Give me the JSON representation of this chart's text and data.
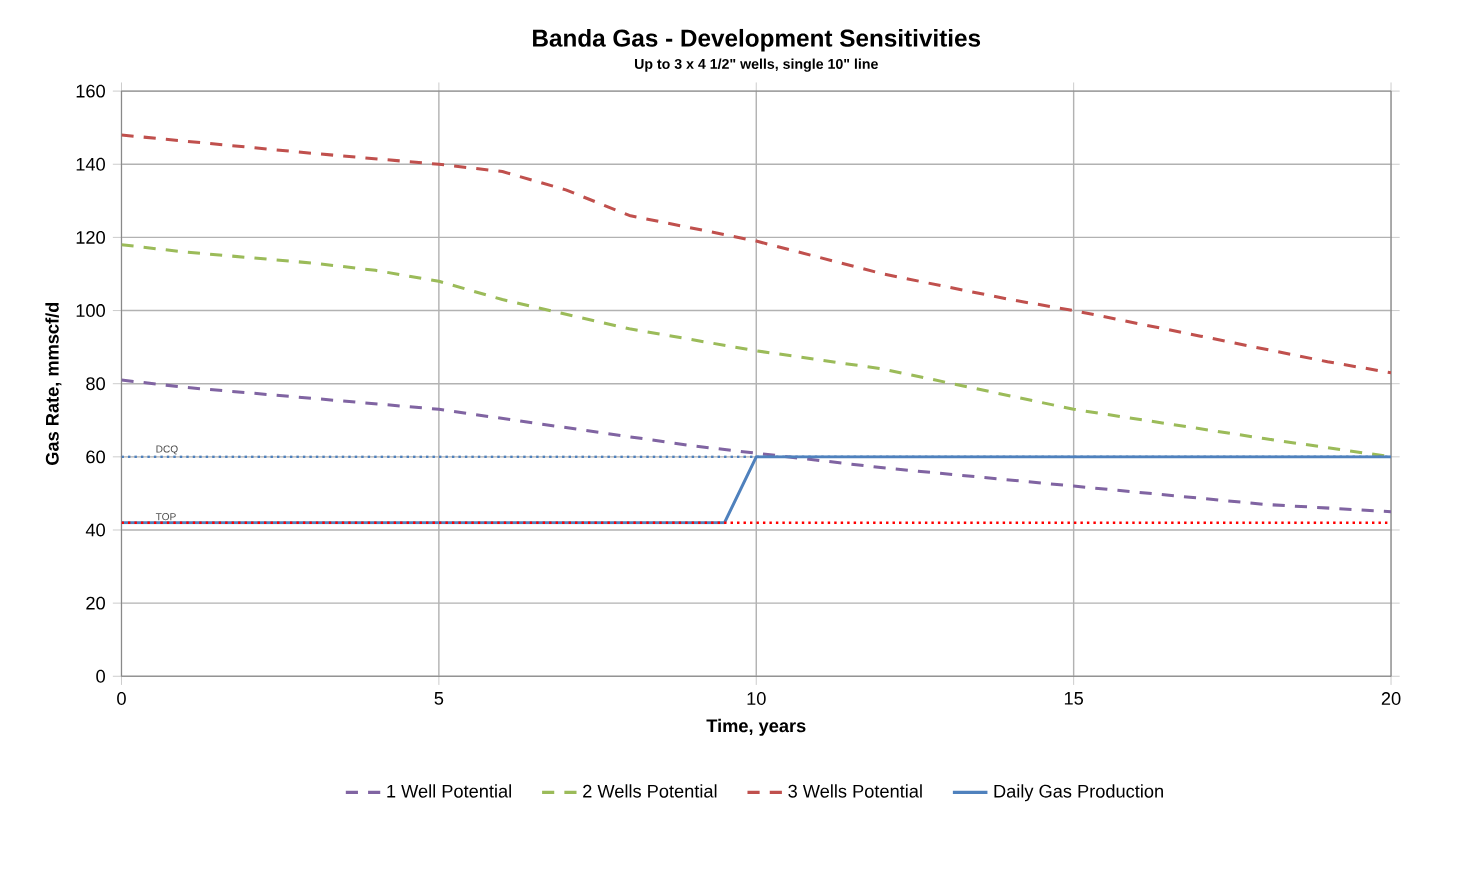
{
  "chart_data": {
    "type": "line",
    "title": "Banda Gas - Development Sensitivities",
    "subtitle": "Up to 3 x 4 1/2\" wells, single 10\" line",
    "xlabel": "Time, years",
    "ylabel": "Gas Rate, mmscf/d",
    "xlim": [
      0,
      20
    ],
    "xticks": [
      0,
      5,
      10,
      15,
      20
    ],
    "ylim": [
      0,
      160
    ],
    "yticks": [
      0,
      20,
      40,
      60,
      80,
      100,
      120,
      140,
      160
    ],
    "grid": true,
    "legend": "bottom",
    "marker": "none",
    "series": [
      {
        "name": "1 Well Potential",
        "color": "#8064a2",
        "line_style": "dashed",
        "x": [
          0,
          1,
          3,
          5,
          7,
          9,
          10,
          12,
          15,
          18,
          20
        ],
        "values": [
          81,
          79,
          76,
          73,
          68,
          63,
          61,
          57,
          52,
          47,
          45
        ]
      },
      {
        "name": "2 Wells Potential",
        "color": "#9bbb59",
        "line_style": "dashed",
        "x": [
          0,
          1,
          3,
          4,
          5,
          6,
          8,
          10,
          12,
          15,
          18,
          20
        ],
        "values": [
          118,
          116,
          113,
          111,
          108,
          103,
          95,
          89,
          84,
          73,
          65,
          60
        ]
      },
      {
        "name": "3 Wells Potential",
        "color": "#c0504d",
        "line_style": "dashed",
        "x": [
          0,
          3,
          5,
          6,
          7,
          8,
          10,
          12,
          14,
          15,
          17,
          19,
          20
        ],
        "values": [
          148,
          143,
          140,
          138,
          133,
          126,
          119,
          110,
          103,
          100,
          93,
          86,
          83
        ]
      },
      {
        "name": "Daily Gas Production",
        "color": "#4f81bd",
        "line_style": "solid",
        "x": [
          0,
          9.5,
          10,
          20
        ],
        "values": [
          42,
          42,
          60,
          60
        ]
      }
    ],
    "ref_lines": [
      {
        "axis": "y",
        "value": 60,
        "label": "DCQ",
        "color": "#4f81bd",
        "line_style": "dotted"
      },
      {
        "axis": "y",
        "value": 42,
        "label": "TOP",
        "color": "#ff0000",
        "line_style": "dotted"
      }
    ]
  }
}
